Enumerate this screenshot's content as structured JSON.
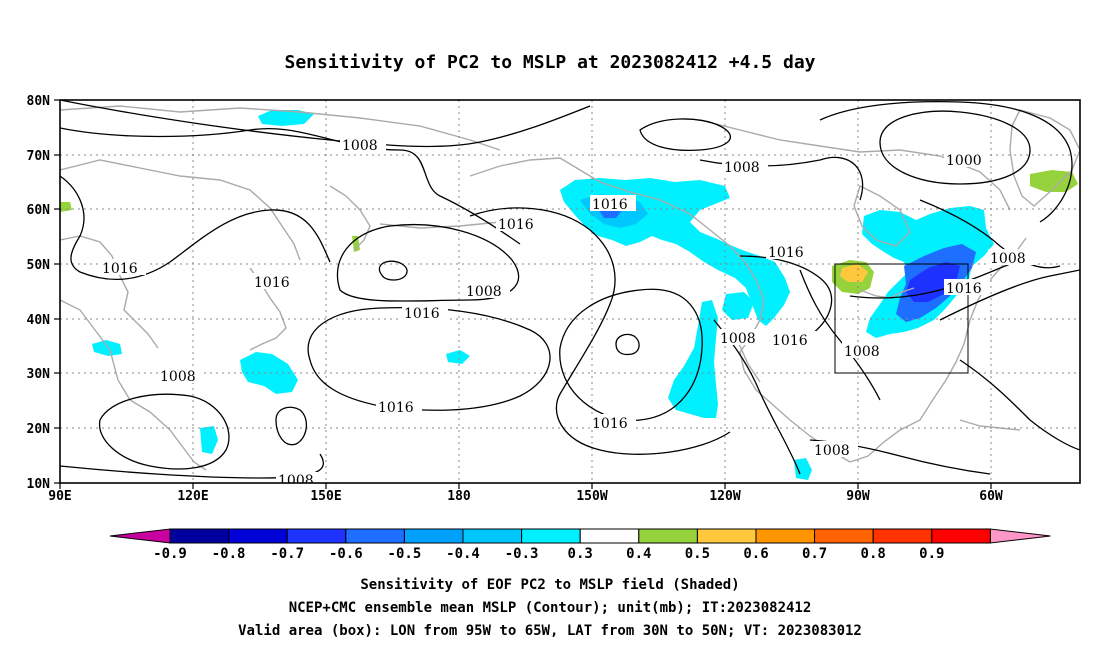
{
  "title": "Sensitivity of PC2 to MSLP at 2023082412 +4.5 day",
  "map": {
    "lat_labels": [
      "80N",
      "70N",
      "60N",
      "50N",
      "40N",
      "30N",
      "20N",
      "10N"
    ],
    "lon_labels": [
      "90E",
      "120E",
      "150E",
      "180",
      "150W",
      "120W",
      "90W",
      "60W"
    ],
    "lon_range_deg_east": [
      90,
      320
    ],
    "lat_range": [
      10,
      80
    ],
    "grid": "dotted",
    "contour_color": "#000000",
    "coastline_color": "#aaaaaa",
    "valid_box": {
      "lon_w": -95,
      "lon_e": -65,
      "lat_s": 30,
      "lat_n": 50
    },
    "contour_labels": [
      "1008",
      "1016",
      "1008",
      "1000",
      "1016",
      "1016",
      "1016",
      "1008",
      "1016",
      "1008",
      "1016",
      "1016",
      "1008",
      "1016",
      "1016",
      "1008",
      "1008",
      "1016",
      "1016",
      "1008",
      "1008"
    ]
  },
  "colorbar": {
    "labels": [
      "-0.9",
      "-0.8",
      "-0.7",
      "-0.6",
      "-0.5",
      "-0.4",
      "-0.3",
      "0.3",
      "0.4",
      "0.5",
      "0.6",
      "0.7",
      "0.8",
      "0.9"
    ],
    "colors": [
      "#0000a0",
      "#0000d8",
      "#1e32ff",
      "#1e6eff",
      "#00a0ff",
      "#00c8ff",
      "#00f0ff",
      "#ffffff",
      "#96d23c",
      "#ffc83c",
      "#ff9600",
      "#ff6400",
      "#ff3200",
      "#ff0000"
    ],
    "low_end_color": "#c800a0",
    "high_end_color": "#ff96c8"
  },
  "footer": {
    "line1": "Sensitivity of EOF PC2 to MSLP field (Shaded)",
    "line2": "NCEP+CMC ensemble mean MSLP (Contour); unit(mb); IT:2023082412",
    "line3": "Valid area (box): LON from 95W to 65W, LAT from 30N to 50N; VT: 2023083012"
  }
}
